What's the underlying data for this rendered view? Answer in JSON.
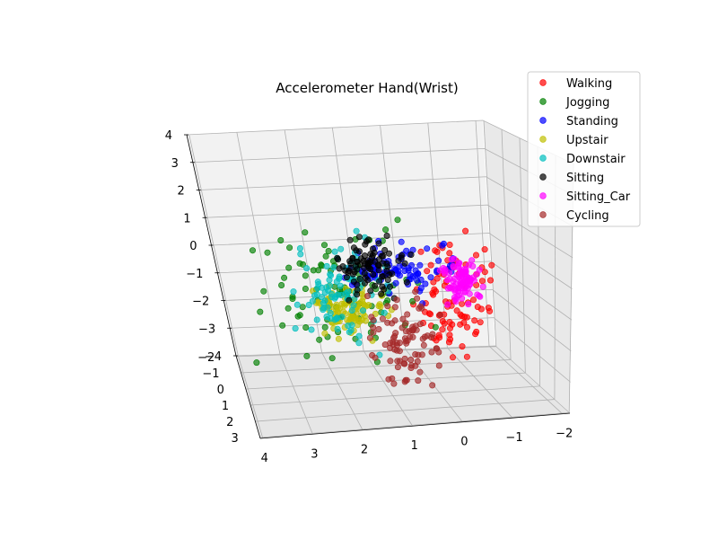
{
  "chart_data": {
    "type": "scatter",
    "title": "Accelerometer Hand(Wrist)",
    "xlabel": "",
    "ylabel": "",
    "zlabel": "",
    "projection": "3d",
    "grid": true,
    "legend_position": "top-right",
    "axes": {
      "x": {
        "range": [
          -2,
          4
        ],
        "ticks": [
          "4",
          "3",
          "2",
          "1",
          "0",
          "−1",
          "−2"
        ]
      },
      "y": {
        "range": [
          -2,
          3
        ],
        "ticks": [
          "−2",
          "−1",
          "0",
          "1",
          "2",
          "3"
        ]
      },
      "z": {
        "range": [
          -4,
          4
        ],
        "ticks": [
          "4",
          "3",
          "2",
          "1",
          "0",
          "−1",
          "−2",
          "−3",
          "−4"
        ]
      }
    },
    "series": [
      {
        "name": "Walking",
        "color": "#ff0000",
        "cluster": {
          "x": [
            -1.2,
            0.4
          ],
          "y": [
            -1.0,
            1.5
          ],
          "z": [
            -3.0,
            1.0
          ]
        }
      },
      {
        "name": "Jogging",
        "color": "#008000",
        "cluster": {
          "x": [
            0.5,
            4.0
          ],
          "y": [
            -1.5,
            2.5
          ],
          "z": [
            -2.5,
            1.8
          ]
        }
      },
      {
        "name": "Standing",
        "color": "#0000ff",
        "cluster": {
          "x": [
            -0.5,
            1.8
          ],
          "y": [
            -1.0,
            0.5
          ],
          "z": [
            -1.0,
            0.6
          ]
        }
      },
      {
        "name": "Upstair",
        "color": "#bfbf00",
        "cluster": {
          "x": [
            1.0,
            2.5
          ],
          "y": [
            -0.5,
            1.0
          ],
          "z": [
            -2.0,
            -0.5
          ]
        }
      },
      {
        "name": "Downstair",
        "color": "#00bfbf",
        "cluster": {
          "x": [
            1.0,
            3.0
          ],
          "y": [
            -1.0,
            1.5
          ],
          "z": [
            -2.5,
            1.2
          ]
        }
      },
      {
        "name": "Sitting",
        "color": "#000000",
        "cluster": {
          "x": [
            0.5,
            2.0
          ],
          "y": [
            -1.0,
            0.5
          ],
          "z": [
            -1.0,
            0.8
          ]
        }
      },
      {
        "name": "Sitting_Car",
        "color": "#ff00ff",
        "cluster": {
          "x": [
            -1.0,
            -0.3
          ],
          "y": [
            -0.5,
            0.5
          ],
          "z": [
            -1.3,
            0.2
          ]
        }
      },
      {
        "name": "Cycling",
        "color": "#a52a2a",
        "cluster": {
          "x": [
            0.0,
            1.5
          ],
          "y": [
            -0.5,
            1.5
          ],
          "z": [
            -3.8,
            -1.0
          ]
        }
      }
    ]
  }
}
